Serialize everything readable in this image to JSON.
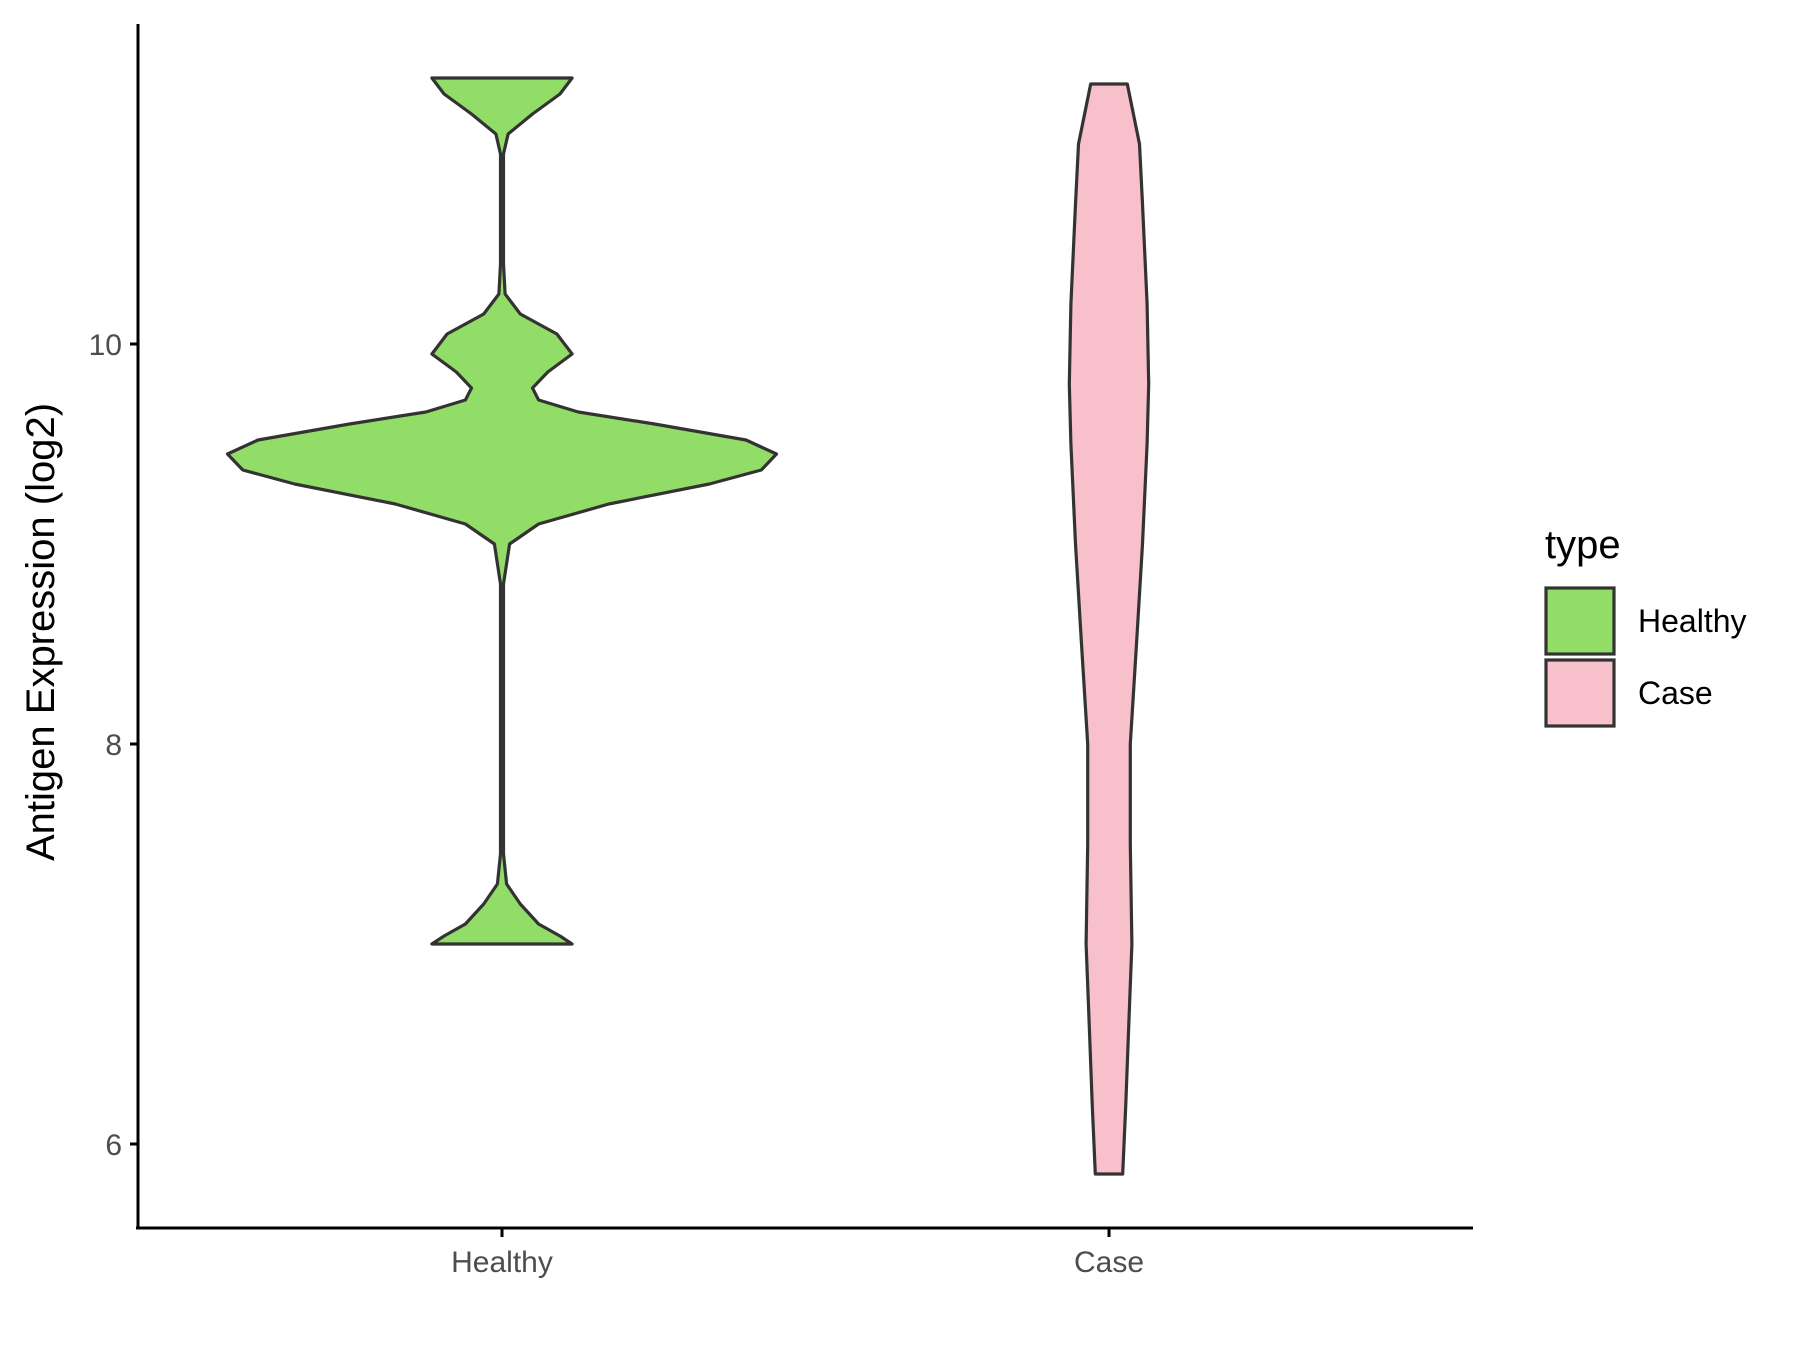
{
  "chart_data": {
    "type": "violin",
    "xlabel": "",
    "ylabel": "Antigen Expression (log2)",
    "categories": [
      "Healthy",
      "Case"
    ],
    "y_ticks": [
      "6",
      "8",
      "10"
    ],
    "y_tick_values": [
      6,
      8,
      10
    ],
    "ylim": [
      5.6,
      11.8
    ],
    "grid": false,
    "legend": {
      "title": "type",
      "position": "right",
      "entries": [
        "Healthy",
        "Case"
      ]
    },
    "series": [
      {
        "name": "Healthy",
        "color": "#92dd68",
        "y_min": 7.0,
        "y_max": 11.33,
        "density_profile": [
          {
            "y": 7.0,
            "half_width": 0.23
          },
          {
            "y": 7.04,
            "half_width": 0.19
          },
          {
            "y": 7.1,
            "half_width": 0.12
          },
          {
            "y": 7.2,
            "half_width": 0.06
          },
          {
            "y": 7.3,
            "half_width": 0.015
          },
          {
            "y": 7.45,
            "half_width": 0.005
          },
          {
            "y": 8.8,
            "half_width": 0.005
          },
          {
            "y": 9.0,
            "half_width": 0.025
          },
          {
            "y": 9.1,
            "half_width": 0.12
          },
          {
            "y": 9.2,
            "half_width": 0.35
          },
          {
            "y": 9.3,
            "half_width": 0.68
          },
          {
            "y": 9.37,
            "half_width": 0.85
          },
          {
            "y": 9.45,
            "half_width": 0.9
          },
          {
            "y": 9.52,
            "half_width": 0.8
          },
          {
            "y": 9.6,
            "half_width": 0.5
          },
          {
            "y": 9.66,
            "half_width": 0.25
          },
          {
            "y": 9.72,
            "half_width": 0.12
          },
          {
            "y": 9.78,
            "half_width": 0.1
          },
          {
            "y": 9.86,
            "half_width": 0.15
          },
          {
            "y": 9.95,
            "half_width": 0.23
          },
          {
            "y": 10.05,
            "half_width": 0.18
          },
          {
            "y": 10.15,
            "half_width": 0.06
          },
          {
            "y": 10.25,
            "half_width": 0.01
          },
          {
            "y": 10.4,
            "half_width": 0.005
          },
          {
            "y": 10.95,
            "half_width": 0.005
          },
          {
            "y": 11.05,
            "half_width": 0.02
          },
          {
            "y": 11.15,
            "half_width": 0.1
          },
          {
            "y": 11.25,
            "half_width": 0.19
          },
          {
            "y": 11.33,
            "half_width": 0.23
          }
        ]
      },
      {
        "name": "Case",
        "color": "#f7c0cb",
        "y_min": 5.85,
        "y_max": 11.3,
        "density_profile": [
          {
            "y": 5.85,
            "half_width": 0.045
          },
          {
            "y": 6.2,
            "half_width": 0.055
          },
          {
            "y": 6.6,
            "half_width": 0.065
          },
          {
            "y": 7.0,
            "half_width": 0.075
          },
          {
            "y": 7.5,
            "half_width": 0.07
          },
          {
            "y": 8.0,
            "half_width": 0.07
          },
          {
            "y": 8.5,
            "half_width": 0.09
          },
          {
            "y": 9.0,
            "half_width": 0.11
          },
          {
            "y": 9.5,
            "half_width": 0.125
          },
          {
            "y": 9.8,
            "half_width": 0.13
          },
          {
            "y": 10.2,
            "half_width": 0.125
          },
          {
            "y": 10.7,
            "half_width": 0.11
          },
          {
            "y": 11.0,
            "half_width": 0.1
          },
          {
            "y": 11.3,
            "half_width": 0.06
          }
        ]
      }
    ]
  }
}
